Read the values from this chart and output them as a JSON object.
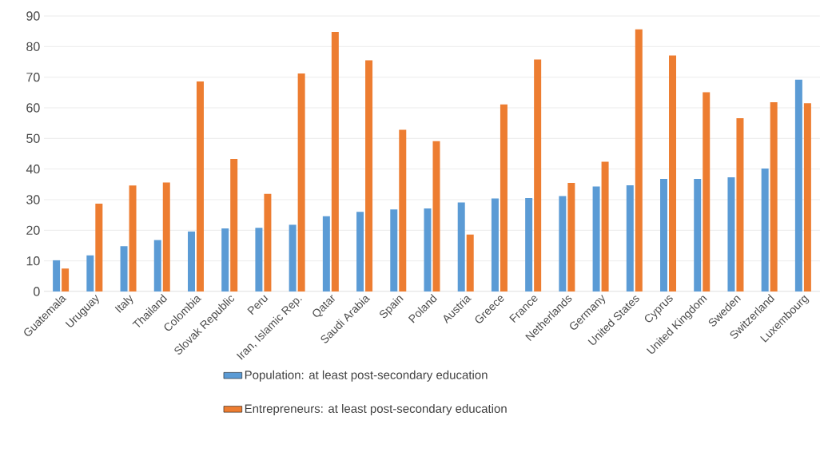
{
  "chart_data": {
    "type": "bar",
    "categories": [
      "Guatemala",
      "Uruguay",
      "Italy",
      "Thailand",
      "Colombia",
      "Slovak Republic",
      "Peru",
      "Iran, Islamic Rep.",
      "Qatar",
      "Saudi Arabia",
      "Spain",
      "Poland",
      "Austria",
      "Greece",
      "France",
      "Netherlands",
      "Germany",
      "United States",
      "Cyprus",
      "United Kingdom",
      "Sweden",
      "Switzerland",
      "Luxembourg"
    ],
    "series": [
      {
        "name": "Population: at least post-secondary education",
        "color": "#5b9bd5",
        "values": [
          10.2,
          11.8,
          14.8,
          16.8,
          19.6,
          20.6,
          20.8,
          21.8,
          24.6,
          26,
          26.8,
          27.1,
          29.1,
          30.4,
          30.5,
          31.2,
          34.3,
          34.7,
          36.8,
          36.8,
          37.3,
          40.2,
          69.2
        ]
      },
      {
        "name": "Entrepreneurs: at least post-secondary education",
        "color": "#ed7d31",
        "values": [
          7.5,
          28.7,
          34.6,
          35.6,
          68.6,
          43.3,
          31.9,
          71.2,
          84.8,
          75.5,
          52.8,
          49.1,
          18.6,
          61.1,
          75.8,
          35.5,
          42.4,
          85.6,
          77.1,
          65.1,
          56.6,
          61.8,
          61.5
        ]
      }
    ],
    "ylim": [
      0,
      90
    ],
    "yticks": [
      0,
      10,
      20,
      30,
      40,
      50,
      60,
      70,
      80,
      90
    ],
    "grid": "y",
    "legend": "bottom"
  }
}
